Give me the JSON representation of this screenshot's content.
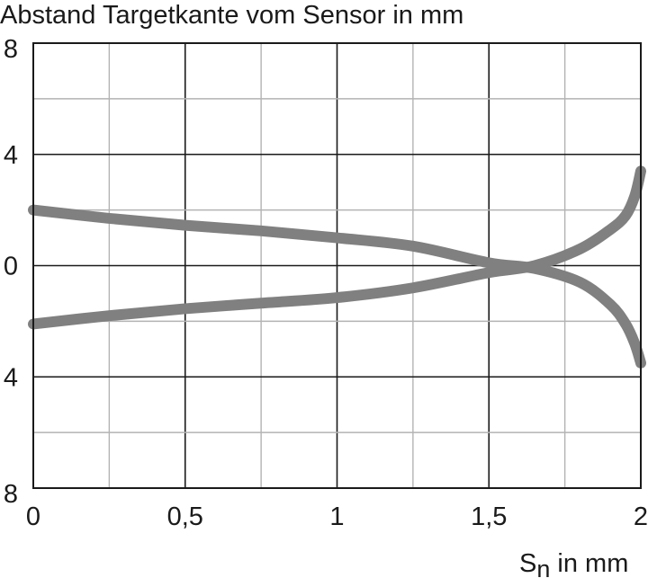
{
  "chart_data": {
    "type": "line",
    "title": "Abstand Targetkante vom Sensor in mm",
    "xlabel_main": "S",
    "xlabel_sub": "n",
    "xlabel_rest": " in mm",
    "xlim": [
      0,
      2
    ],
    "ylim": [
      -8,
      8
    ],
    "x_ticks": [
      0,
      0.5,
      1,
      1.5,
      2
    ],
    "x_tick_labels": [
      "0",
      "0,5",
      "1",
      "1,5",
      "2"
    ],
    "y_ticks": [
      8,
      4,
      0,
      -4,
      -8
    ],
    "y_tick_labels": [
      "8",
      "4",
      "0",
      "4",
      "8"
    ],
    "grid": true,
    "series": [
      {
        "x": [
          0,
          0.25,
          0.5,
          0.75,
          1.0,
          1.25,
          1.5,
          1.65,
          1.8,
          1.9,
          1.95,
          1.98,
          2.0
        ],
        "y": [
          2.0,
          1.7,
          1.45,
          1.25,
          1.0,
          0.7,
          0.1,
          -0.1,
          -0.6,
          -1.4,
          -2.1,
          -2.8,
          -3.5
        ],
        "color": "#808080"
      },
      {
        "x": [
          0,
          0.25,
          0.5,
          0.75,
          1.0,
          1.25,
          1.5,
          1.65,
          1.8,
          1.9,
          1.95,
          1.98,
          2.0
        ],
        "y": [
          -2.1,
          -1.8,
          -1.55,
          -1.35,
          -1.15,
          -0.8,
          -0.25,
          0.0,
          0.6,
          1.3,
          1.8,
          2.5,
          3.4
        ],
        "color": "#808080"
      }
    ]
  }
}
